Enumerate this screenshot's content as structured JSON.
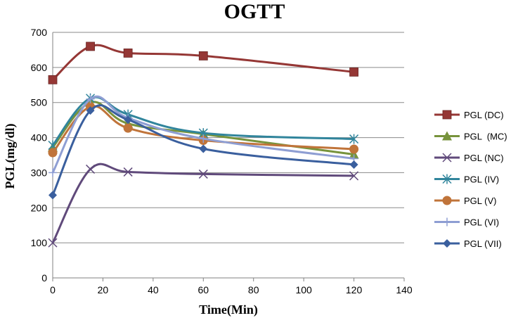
{
  "chart_data": {
    "type": "line",
    "title": "OGTT",
    "xlabel": "Time(Min)",
    "ylabel": "PGL(mg/dl)",
    "xlim": [
      0,
      140
    ],
    "ylim": [
      0,
      700
    ],
    "xticks": [
      0,
      20,
      40,
      60,
      80,
      100,
      120,
      140
    ],
    "yticks": [
      0,
      100,
      200,
      300,
      400,
      500,
      600,
      700
    ],
    "grid": "horizontal",
    "legend_position": "right",
    "x": [
      0,
      15,
      30,
      60,
      120
    ],
    "series": [
      {
        "name": "PGL (DC)",
        "values": [
          565,
          660,
          641,
          633,
          587
        ],
        "color": "#953735",
        "marker": "square"
      },
      {
        "name": "PGL  (MC)",
        "values": [
          372,
          500,
          440,
          410,
          352
        ],
        "color": "#77933c",
        "marker": "triangle"
      },
      {
        "name": "PGL (NC)",
        "values": [
          100,
          310,
          302,
          296,
          291
        ],
        "color": "#604a7b",
        "marker": "x"
      },
      {
        "name": "PGL (IV)",
        "values": [
          378,
          512,
          466,
          413,
          396
        ],
        "color": "#31859c",
        "marker": "star"
      },
      {
        "name": "PGL (V)",
        "values": [
          357,
          488,
          427,
          392,
          367
        ],
        "color": "#c0743a",
        "marker": "circle"
      },
      {
        "name": "PGL (VI)",
        "values": [
          300,
          510,
          456,
          397,
          340
        ],
        "color": "#8e9ed3",
        "marker": "plus"
      },
      {
        "name": "PGL (VII)",
        "values": [
          236,
          477,
          451,
          368,
          323
        ],
        "color": "#3a5f9e",
        "marker": "diamond"
      }
    ]
  }
}
